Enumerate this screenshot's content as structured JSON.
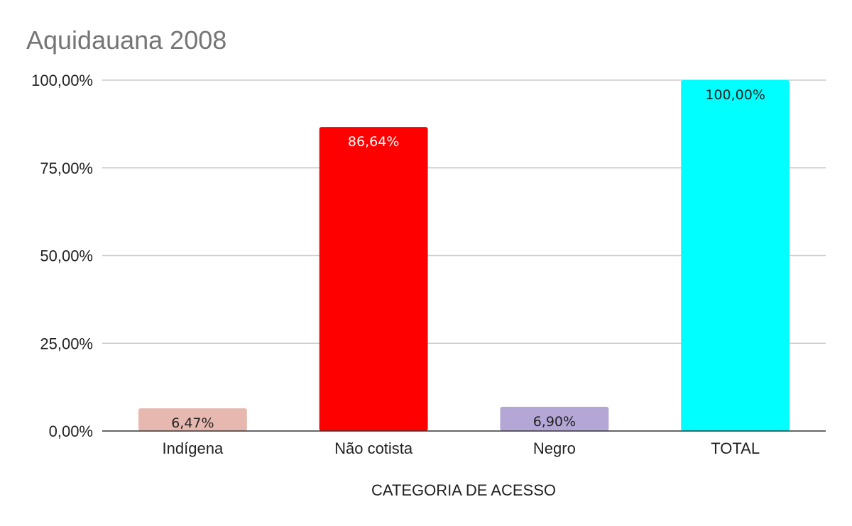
{
  "chart_data": {
    "type": "bar",
    "title": "Aquidauana 2008",
    "xlabel": "CATEGORIA DE ACESSO",
    "ylabel": "",
    "categories": [
      "Indígena",
      "Não cotista",
      "Negro",
      "TOTAL"
    ],
    "values": [
      6.47,
      86.64,
      6.9,
      100.0
    ],
    "data_labels": [
      "6,47%",
      "86,64%",
      "6,90%",
      "100,00%"
    ],
    "bar_colors": [
      "#e6b8af",
      "#ff0000",
      "#b4a7d6",
      "#00ffff"
    ],
    "label_colors": [
      "#222222",
      "#ffffff",
      "#222222",
      "#222222"
    ],
    "ylim": [
      0,
      100
    ],
    "y_ticks": [
      0,
      25,
      50,
      75,
      100
    ],
    "y_tick_labels": [
      "0,00%",
      "25,00%",
      "50,00%",
      "75,00%",
      "100,00%"
    ],
    "grid": true,
    "legend": "none"
  }
}
